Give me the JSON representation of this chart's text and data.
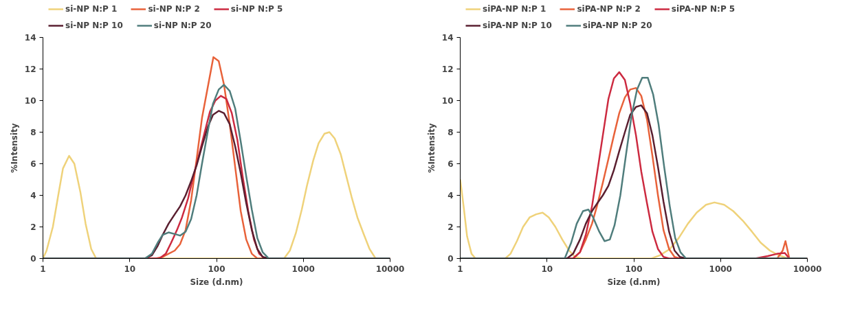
{
  "chart_data": [
    {
      "type": "line",
      "xlabel": "Size (d.nm)",
      "ylabel": "%Intensity",
      "log": "x",
      "xlim": [
        1,
        10000
      ],
      "ylim": [
        0,
        14
      ],
      "xticks": [
        1,
        10,
        100,
        1000,
        10000
      ],
      "yticks": [
        0,
        2,
        4,
        6,
        8,
        10,
        12,
        14
      ],
      "grid": false,
      "legend": "top",
      "series": [
        {
          "name": "si-NP N:P 1",
          "color": "#efd27a",
          "x": [
            1,
            1.1,
            1.3,
            1.5,
            1.7,
            2,
            2.3,
            2.7,
            3.1,
            3.6,
            4.1,
            600,
            700,
            820,
            960,
            1100,
            1300,
            1500,
            1750,
            2000,
            2300,
            2700,
            3100,
            3600,
            4200,
            5000,
            5800,
            6800,
            10000
          ],
          "values": [
            0,
            0.5,
            2,
            4,
            5.7,
            6.5,
            6,
            4.2,
            2.2,
            0.6,
            0,
            0,
            0.5,
            1.6,
            3.1,
            4.6,
            6.2,
            7.3,
            7.9,
            8,
            7.6,
            6.6,
            5.3,
            3.9,
            2.6,
            1.5,
            0.6,
            0,
            0
          ]
        },
        {
          "name": "si-NP N:P 2",
          "color": "#e8623a",
          "x": [
            1,
            20,
            24,
            28,
            33,
            38,
            44,
            51,
            59,
            68,
            79,
            92,
            106,
            122,
            142,
            164,
            190,
            220,
            255,
            295,
            10000
          ],
          "values": [
            0,
            0,
            0.1,
            0.3,
            0.5,
            0.9,
            1.8,
            3.7,
            6.3,
            8.9,
            10.8,
            12.75,
            12.5,
            11,
            8.5,
            5.8,
            3,
            1.2,
            0.3,
            0,
            0
          ]
        },
        {
          "name": "si-NP N:P 5",
          "color": "#cc2a40",
          "x": [
            1,
            22,
            26,
            30,
            35,
            40,
            47,
            54,
            63,
            73,
            84,
            97,
            112,
            130,
            150,
            174,
            200,
            232,
            270,
            310,
            360,
            10000
          ],
          "values": [
            0,
            0,
            0.3,
            1,
            1.8,
            2.6,
            3.8,
            5.2,
            6.6,
            8,
            9.3,
            10,
            10.3,
            10.1,
            9.2,
            7.5,
            5.2,
            3,
            1.2,
            0.3,
            0,
            0
          ]
        },
        {
          "name": "si-NP N:P 10",
          "color": "#5a1f30",
          "x": [
            1,
            15,
            18,
            21,
            24,
            28,
            33,
            38,
            44,
            51,
            59,
            68,
            79,
            91,
            106,
            122,
            142,
            164,
            190,
            220,
            255,
            295,
            340,
            400,
            10000
          ],
          "values": [
            0,
            0,
            0.2,
            0.8,
            1.5,
            2.2,
            2.8,
            3.3,
            4,
            4.9,
            5.9,
            7.1,
            8.3,
            9.1,
            9.35,
            9.2,
            8.5,
            7.1,
            5.4,
            3.5,
            1.8,
            0.6,
            0.1,
            0,
            0
          ]
        },
        {
          "name": "si-NP N:P 20",
          "color": "#4f7d7c",
          "x": [
            1,
            15,
            18,
            21,
            24,
            28,
            33,
            38,
            44,
            51,
            59,
            68,
            79,
            91,
            106,
            122,
            142,
            164,
            190,
            220,
            255,
            295,
            340,
            400,
            10000
          ],
          "values": [
            0,
            0,
            0.3,
            1,
            1.5,
            1.65,
            1.55,
            1.45,
            1.7,
            2.5,
            4,
            6,
            8,
            9.8,
            10.7,
            11,
            10.6,
            9.5,
            7.4,
            5.2,
            3.1,
            1.3,
            0.4,
            0,
            0
          ]
        }
      ]
    },
    {
      "type": "line",
      "xlabel": "Size (d.nm)",
      "ylabel": "%Intensity",
      "log": "x",
      "xlim": [
        1,
        10000
      ],
      "ylim": [
        0,
        14
      ],
      "xticks": [
        1,
        10,
        100,
        1000,
        10000
      ],
      "yticks": [
        0,
        2,
        4,
        6,
        8,
        10,
        12,
        14
      ],
      "grid": false,
      "legend": "top",
      "series": [
        {
          "name": "siPA-NP N:P 1",
          "color": "#efd27a",
          "x": [
            1,
            1.1,
            1.2,
            1.35,
            1.5,
            3.3,
            3.8,
            4.5,
            5.3,
            6.3,
            7.5,
            8.9,
            10.5,
            12.5,
            15,
            18,
            21,
            25,
            160,
            200,
            260,
            330,
            420,
            530,
            680,
            850,
            1100,
            1400,
            1800,
            2300,
            2900,
            3700,
            4700,
            6000,
            10000
          ],
          "values": [
            5,
            3.2,
            1.4,
            0.3,
            0,
            0,
            0.3,
            1.1,
            2,
            2.6,
            2.8,
            2.9,
            2.6,
            2,
            1.2,
            0.5,
            0.1,
            0,
            0,
            0.2,
            0.6,
            1.3,
            2.2,
            2.9,
            3.4,
            3.55,
            3.4,
            3,
            2.4,
            1.7,
            1,
            0.5,
            0.2,
            0,
            0
          ]
        },
        {
          "name": "siPA-NP N:P 2",
          "color": "#e8623a",
          "x": [
            1,
            20,
            24,
            28,
            33,
            38,
            44,
            51,
            59,
            68,
            79,
            91,
            106,
            122,
            142,
            164,
            190,
            220,
            255,
            295,
            340,
            4500,
            5200,
            5600,
            6200,
            10000
          ],
          "values": [
            0,
            0,
            0.4,
            1.2,
            2.2,
            3.4,
            4.8,
            6.3,
            7.8,
            9.2,
            10.2,
            10.7,
            10.8,
            10.3,
            8.8,
            6.5,
            4,
            1.8,
            0.6,
            0.1,
            0,
            0,
            0.5,
            1.1,
            0,
            0
          ]
        },
        {
          "name": "siPA-NP N:P 5",
          "color": "#cc2a40",
          "x": [
            1,
            20,
            24,
            28,
            33,
            38,
            44,
            51,
            59,
            68,
            79,
            91,
            106,
            122,
            142,
            164,
            190,
            220,
            255,
            2500,
            3500,
            4500,
            5500,
            6200,
            10000
          ],
          "values": [
            0,
            0,
            0.4,
            1.5,
            3.3,
            5.5,
            7.8,
            10.1,
            11.4,
            11.8,
            11.3,
            9.8,
            7.8,
            5.5,
            3.5,
            1.7,
            0.6,
            0.1,
            0,
            0,
            0.15,
            0.3,
            0.35,
            0,
            0
          ]
        },
        {
          "name": "siPA-NP N:P 10",
          "color": "#5a1f30",
          "x": [
            1,
            17,
            20,
            24,
            28,
            33,
            38,
            44,
            51,
            59,
            68,
            79,
            91,
            106,
            122,
            142,
            164,
            190,
            220,
            255,
            295,
            340,
            400,
            10000
          ],
          "values": [
            0,
            0,
            0.3,
            1.2,
            2.2,
            3,
            3.5,
            4,
            4.6,
            5.6,
            6.8,
            8,
            9.1,
            9.6,
            9.7,
            9.2,
            7.8,
            5.8,
            3.6,
            1.7,
            0.5,
            0.1,
            0,
            0
          ]
        },
        {
          "name": "siPA-NP N:P 20",
          "color": "#4f7d7c",
          "x": [
            1,
            16,
            19,
            22,
            26,
            30,
            34,
            40,
            46,
            53,
            60,
            70,
            81,
            94,
            109,
            125,
            145,
            167,
            193,
            224,
            260,
            300,
            345,
            400,
            10000
          ],
          "values": [
            0,
            0,
            1,
            2.2,
            3,
            3.1,
            2.6,
            1.7,
            1.1,
            1.2,
            2.1,
            4,
            6.5,
            9,
            10.7,
            11.45,
            11.45,
            10.4,
            8.5,
            5.8,
            3.3,
            1.3,
            0.4,
            0,
            0
          ]
        }
      ]
    }
  ]
}
